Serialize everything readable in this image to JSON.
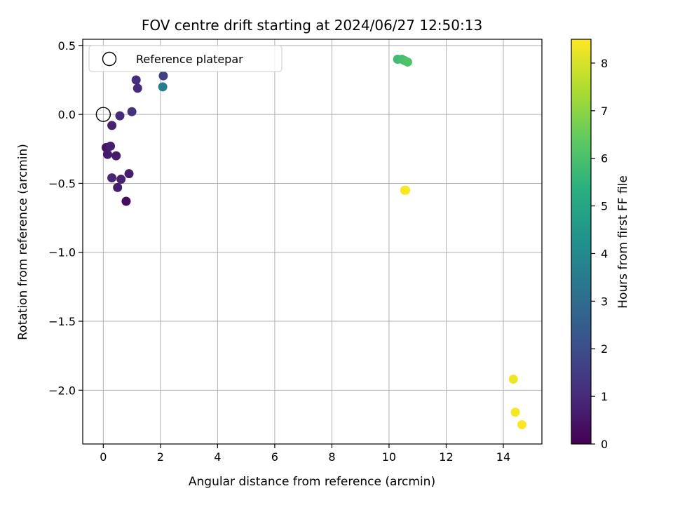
{
  "chart_data": {
    "type": "scatter",
    "title": "FOV centre drift starting at 2024/06/27 12:50:13",
    "xlabel": "Angular distance from reference (arcmin)",
    "ylabel": "Rotation from reference (arcmin)",
    "xlim": [
      -0.72,
      15.35
    ],
    "ylim": [
      -2.39,
      0.545
    ],
    "xticks": [
      0,
      2,
      4,
      6,
      8,
      10,
      12,
      14
    ],
    "xtick_labels": [
      "0",
      "2",
      "4",
      "6",
      "8",
      "10",
      "12",
      "14"
    ],
    "yticks": [
      0.5,
      0.0,
      -0.5,
      -1.0,
      -1.5,
      -2.0
    ],
    "ytick_labels": [
      "0.5",
      "0.0",
      "−0.5",
      "−1.0",
      "−1.5",
      "−2.0"
    ],
    "grid": true,
    "legend": {
      "placement": "top-left",
      "entries": [
        {
          "label": "Reference platepar",
          "marker": "hollow-circle",
          "x": 0,
          "y": 0
        }
      ]
    },
    "colorbar": {
      "label": "Hours from first FF file",
      "range": [
        0,
        8.5
      ],
      "ticks": [
        0,
        1,
        2,
        3,
        4,
        5,
        6,
        7,
        8
      ],
      "tick_labels": [
        "0",
        "1",
        "2",
        "3",
        "4",
        "5",
        "6",
        "7",
        "8"
      ],
      "colormap": "viridis"
    },
    "points": [
      {
        "x": 0.1,
        "y": -0.24,
        "hours": 0.5
      },
      {
        "x": 0.15,
        "y": -0.29,
        "hours": 0.6
      },
      {
        "x": 0.25,
        "y": -0.23,
        "hours": 0.7
      },
      {
        "x": 0.3,
        "y": -0.08,
        "hours": 0.8
      },
      {
        "x": 0.45,
        "y": -0.3,
        "hours": 0.6
      },
      {
        "x": 0.3,
        "y": -0.46,
        "hours": 0.9
      },
      {
        "x": 0.5,
        "y": -0.53,
        "hours": 0.7
      },
      {
        "x": 0.62,
        "y": -0.47,
        "hours": 0.8
      },
      {
        "x": 0.9,
        "y": -0.43,
        "hours": 0.7
      },
      {
        "x": 0.8,
        "y": -0.63,
        "hours": 0.3
      },
      {
        "x": 0.58,
        "y": -0.01,
        "hours": 1.0
      },
      {
        "x": 1.0,
        "y": 0.02,
        "hours": 1.2
      },
      {
        "x": 1.15,
        "y": 0.25,
        "hours": 1.1
      },
      {
        "x": 1.2,
        "y": 0.19,
        "hours": 1.0
      },
      {
        "x": 2.1,
        "y": 0.28,
        "hours": 1.6
      },
      {
        "x": 2.08,
        "y": 0.2,
        "hours": 3.6
      },
      {
        "x": 10.3,
        "y": 0.4,
        "hours": 5.8
      },
      {
        "x": 10.45,
        "y": 0.4,
        "hours": 5.9
      },
      {
        "x": 10.55,
        "y": 0.39,
        "hours": 6.0
      },
      {
        "x": 10.65,
        "y": 0.38,
        "hours": 6.1
      },
      {
        "x": 10.55,
        "y": -0.55,
        "hours": 8.3
      },
      {
        "x": 10.58,
        "y": -0.55,
        "hours": 8.4
      },
      {
        "x": 14.35,
        "y": -1.92,
        "hours": 8.3
      },
      {
        "x": 14.42,
        "y": -2.16,
        "hours": 8.4
      },
      {
        "x": 14.65,
        "y": -2.25,
        "hours": 8.5
      }
    ]
  }
}
